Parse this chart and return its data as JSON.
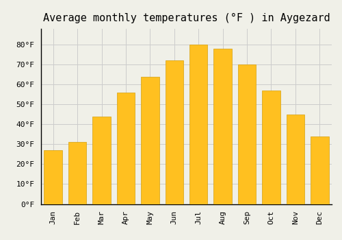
{
  "title": "Average monthly temperatures (°F ) in Aygezard",
  "months": [
    "Jan",
    "Feb",
    "Mar",
    "Apr",
    "May",
    "Jun",
    "Jul",
    "Aug",
    "Sep",
    "Oct",
    "Nov",
    "Dec"
  ],
  "values": [
    27,
    31,
    44,
    56,
    64,
    72,
    80,
    78,
    70,
    57,
    45,
    34
  ],
  "bar_color": "#FFC020",
  "bar_edge_color": "#D4A010",
  "background_color": "#F0F0E8",
  "grid_color": "#CCCCCC",
  "ylim": [
    0,
    88
  ],
  "yticks": [
    0,
    10,
    20,
    30,
    40,
    50,
    60,
    70,
    80
  ],
  "ytick_labels": [
    "0°F",
    "10°F",
    "20°F",
    "30°F",
    "40°F",
    "50°F",
    "60°F",
    "70°F",
    "80°F"
  ],
  "title_fontsize": 11,
  "tick_fontsize": 8,
  "font_family": "monospace"
}
